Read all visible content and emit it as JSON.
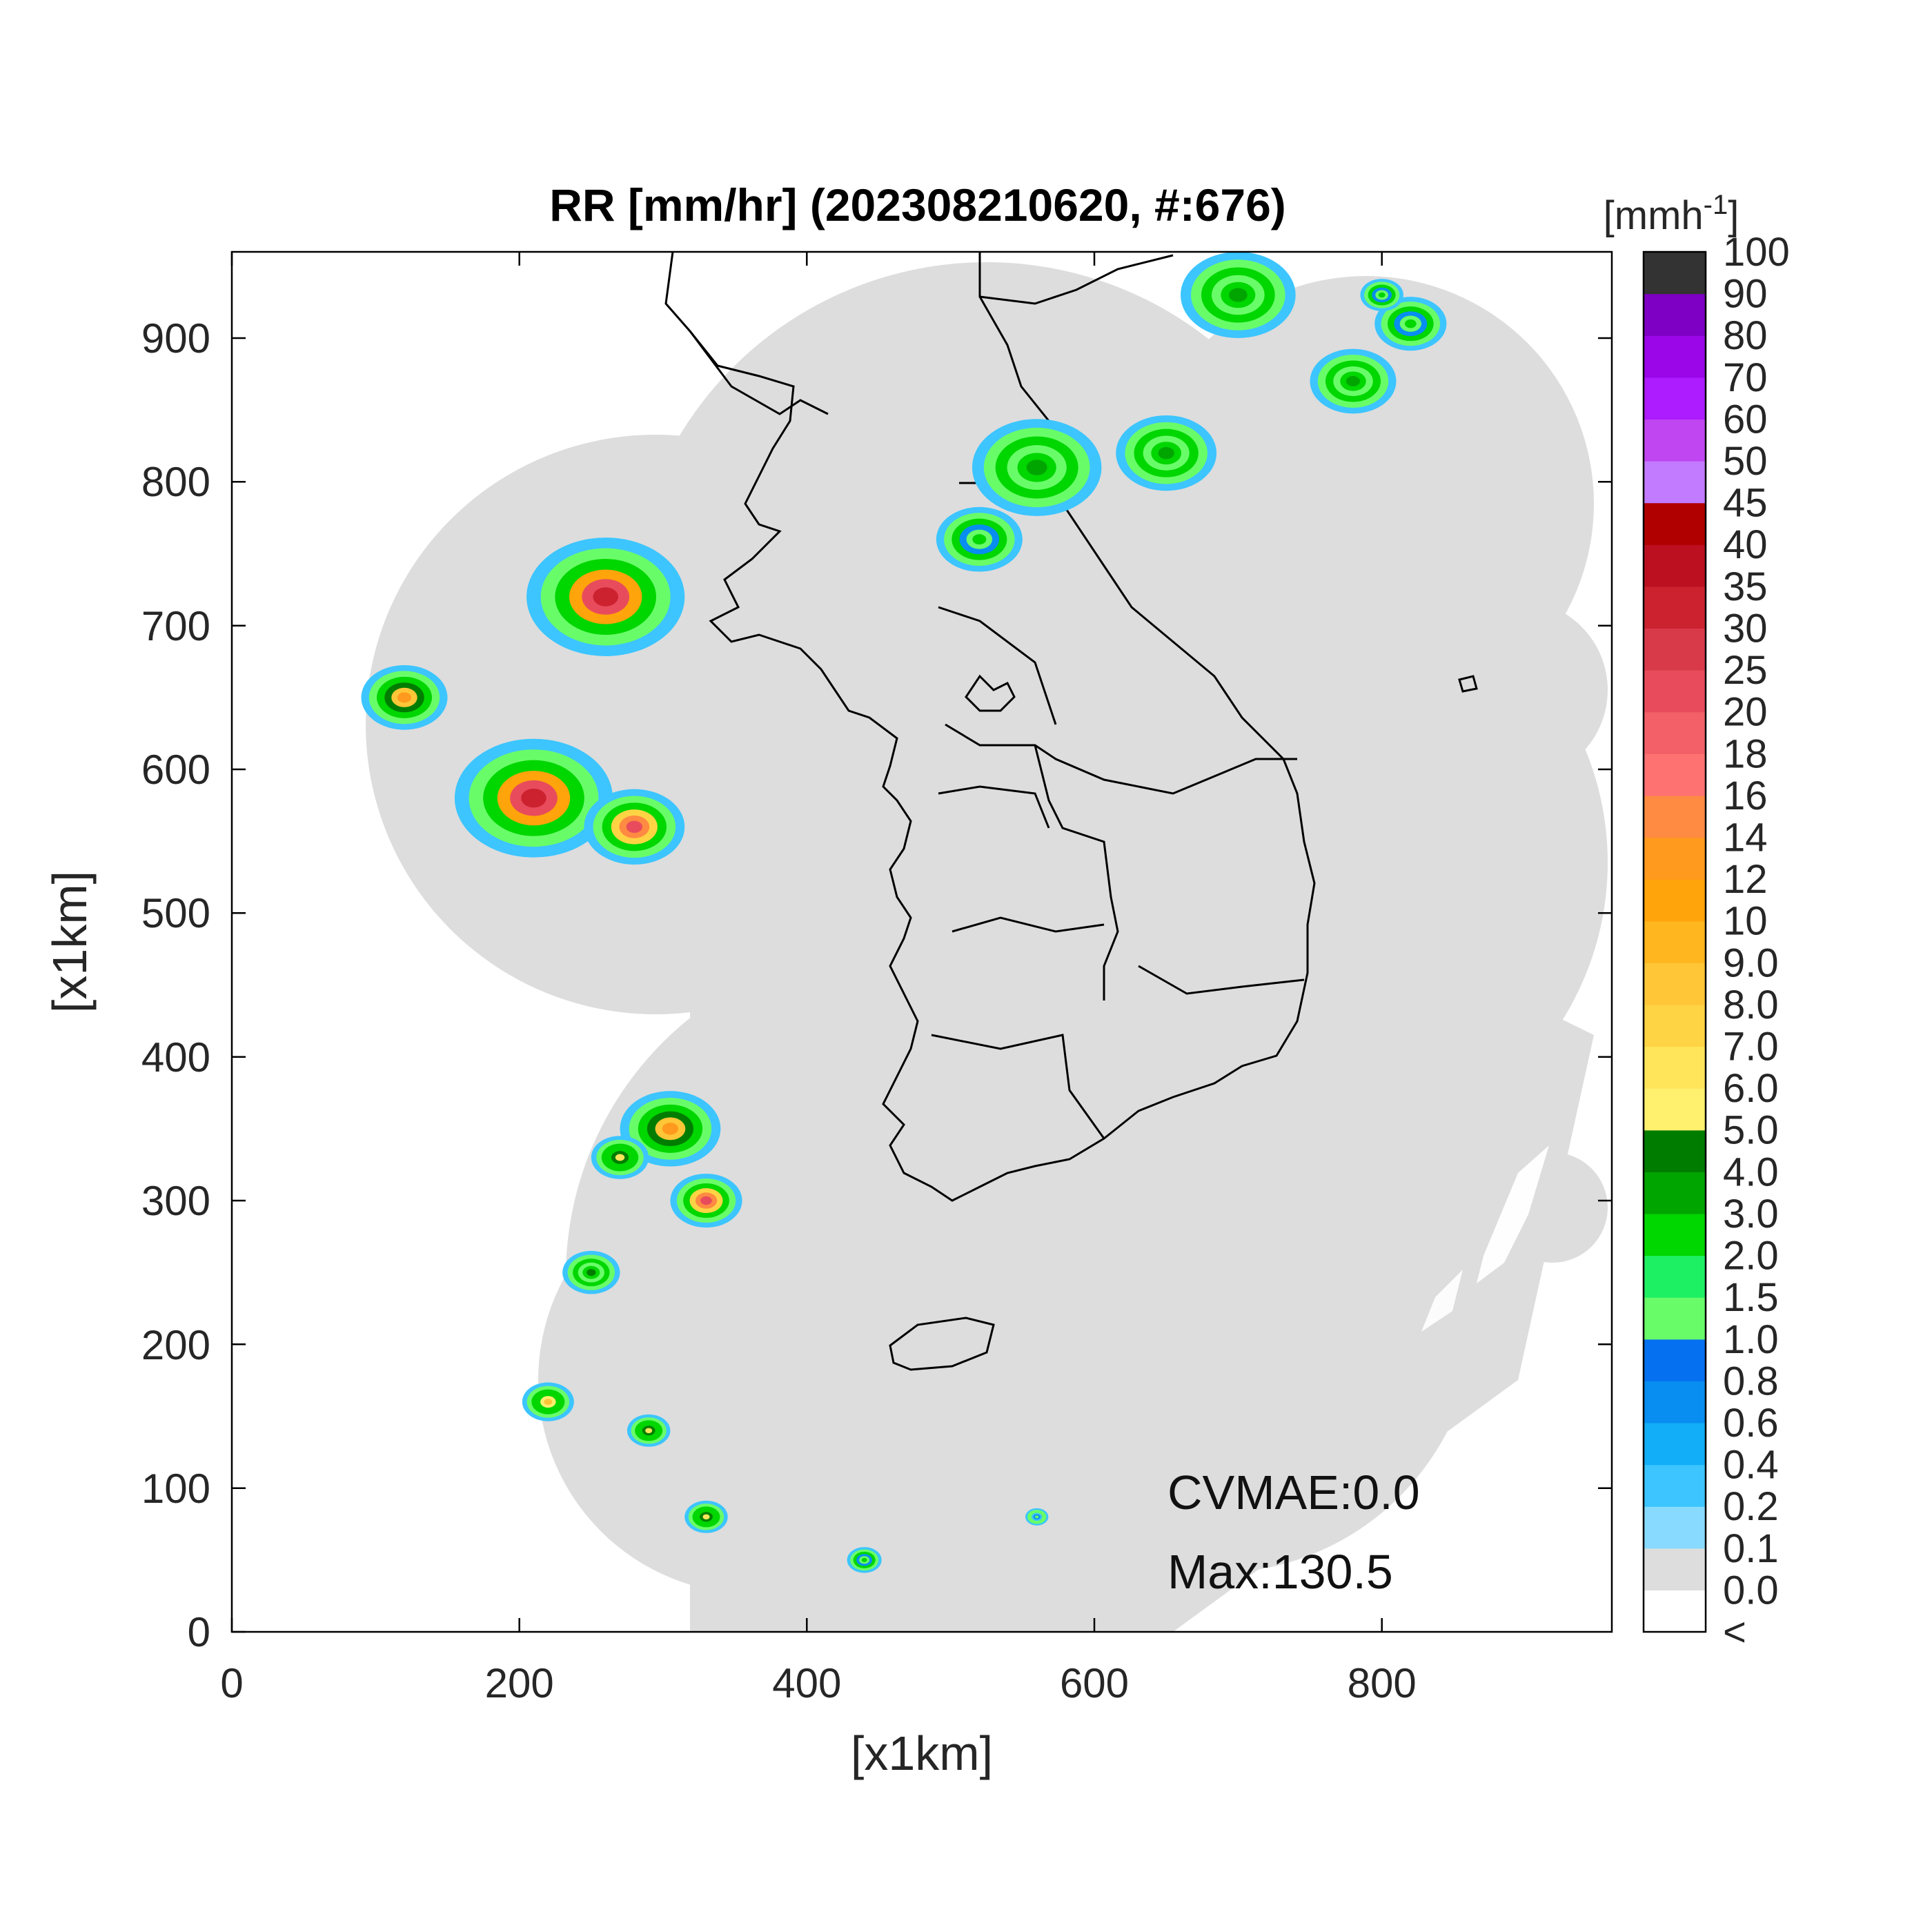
{
  "title": "RR [mm/hr] (202308210620, #:676)",
  "xlabel": "[x1km]",
  "ylabel": "[x1km]",
  "x_ticks": [
    "0",
    "200",
    "400",
    "600",
    "800"
  ],
  "y_ticks": [
    "0",
    "100",
    "200",
    "300",
    "400",
    "500",
    "600",
    "700",
    "800",
    "900"
  ],
  "annotations": {
    "cvmae": "CVMAE:0.0",
    "max": "Max:130.5"
  },
  "colorbar": {
    "unit": "[mmh",
    "unit_exp": "-1",
    "unit_close": "]",
    "labels": [
      "<",
      "0.0",
      "0.1",
      "0.2",
      "0.4",
      "0.6",
      "0.8",
      "1.0",
      "1.5",
      "2.0",
      "3.0",
      "4.0",
      "5.0",
      "6.0",
      "7.0",
      "8.0",
      "9.0",
      "10",
      "12",
      "14",
      "16",
      "18",
      "20",
      "25",
      "30",
      "35",
      "40",
      "45",
      "50",
      "60",
      "70",
      "80",
      "90",
      "100"
    ],
    "colors": [
      "#ffffff",
      "#dddddd",
      "#88dbff",
      "#3cc5ff",
      "#12aef8",
      "#088ef0",
      "#0571f0",
      "#69fc69",
      "#1ef064",
      "#00d600",
      "#00a500",
      "#007d00",
      "#fff06e",
      "#ffe55a",
      "#ffd444",
      "#ffc638",
      "#ffb61f",
      "#ffa40a",
      "#ff9a1e",
      "#ff8a42",
      "#ff7272",
      "#f36068",
      "#e84c5c",
      "#d93a4a",
      "#cc2230",
      "#bc1020",
      "#b00000",
      "#c27aff",
      "#c046f2",
      "#ad1bff",
      "#9a06e8",
      "#7d00c4",
      "#333333"
    ]
  },
  "chart_data": {
    "type": "heatmap",
    "title": "RR [mm/hr] (202308210620, #:676)",
    "xlabel": "[x1km]",
    "ylabel": "[x1km]",
    "xlim": [
      0,
      960
    ],
    "ylim": [
      0,
      960
    ],
    "x_ticks": [
      0,
      200,
      400,
      600,
      800
    ],
    "y_ticks": [
      0,
      100,
      200,
      300,
      400,
      500,
      600,
      700,
      800,
      900
    ],
    "color_levels": [
      0.0,
      0.1,
      0.2,
      0.4,
      0.6,
      0.8,
      1.0,
      1.5,
      2.0,
      3.0,
      4.0,
      5.0,
      6.0,
      7.0,
      8.0,
      9.0,
      10,
      12,
      14,
      16,
      18,
      20,
      25,
      30,
      35,
      40,
      45,
      50,
      60,
      70,
      80,
      90,
      100
    ],
    "max_value": 130.5,
    "cvmae": 0.0,
    "rain_cells": [
      {
        "x": 260,
        "y": 720,
        "r": 55,
        "peak": 30
      },
      {
        "x": 210,
        "y": 580,
        "r": 55,
        "peak": 30
      },
      {
        "x": 120,
        "y": 650,
        "r": 30,
        "peak": 12
      },
      {
        "x": 280,
        "y": 560,
        "r": 35,
        "peak": 20
      },
      {
        "x": 305,
        "y": 350,
        "r": 35,
        "peak": 12
      },
      {
        "x": 330,
        "y": 300,
        "r": 25,
        "peak": 20
      },
      {
        "x": 270,
        "y": 330,
        "r": 20,
        "peak": 6
      },
      {
        "x": 250,
        "y": 250,
        "r": 20,
        "peak": 4
      },
      {
        "x": 560,
        "y": 810,
        "r": 45,
        "peak": 3
      },
      {
        "x": 650,
        "y": 820,
        "r": 35,
        "peak": 3
      },
      {
        "x": 700,
        "y": 930,
        "r": 40,
        "peak": 3
      },
      {
        "x": 780,
        "y": 870,
        "r": 30,
        "peak": 3
      },
      {
        "x": 820,
        "y": 910,
        "r": 25,
        "peak": 2
      },
      {
        "x": 520,
        "y": 760,
        "r": 30,
        "peak": 2
      },
      {
        "x": 220,
        "y": 160,
        "r": 18,
        "peak": 8
      },
      {
        "x": 290,
        "y": 140,
        "r": 15,
        "peak": 6
      },
      {
        "x": 330,
        "y": 80,
        "r": 15,
        "peak": 6
      },
      {
        "x": 440,
        "y": 50,
        "r": 12,
        "peak": 2
      },
      {
        "x": 560,
        "y": 80,
        "r": 8,
        "peak": 1
      },
      {
        "x": 800,
        "y": 930,
        "r": 15,
        "peak": 2
      }
    ]
  }
}
